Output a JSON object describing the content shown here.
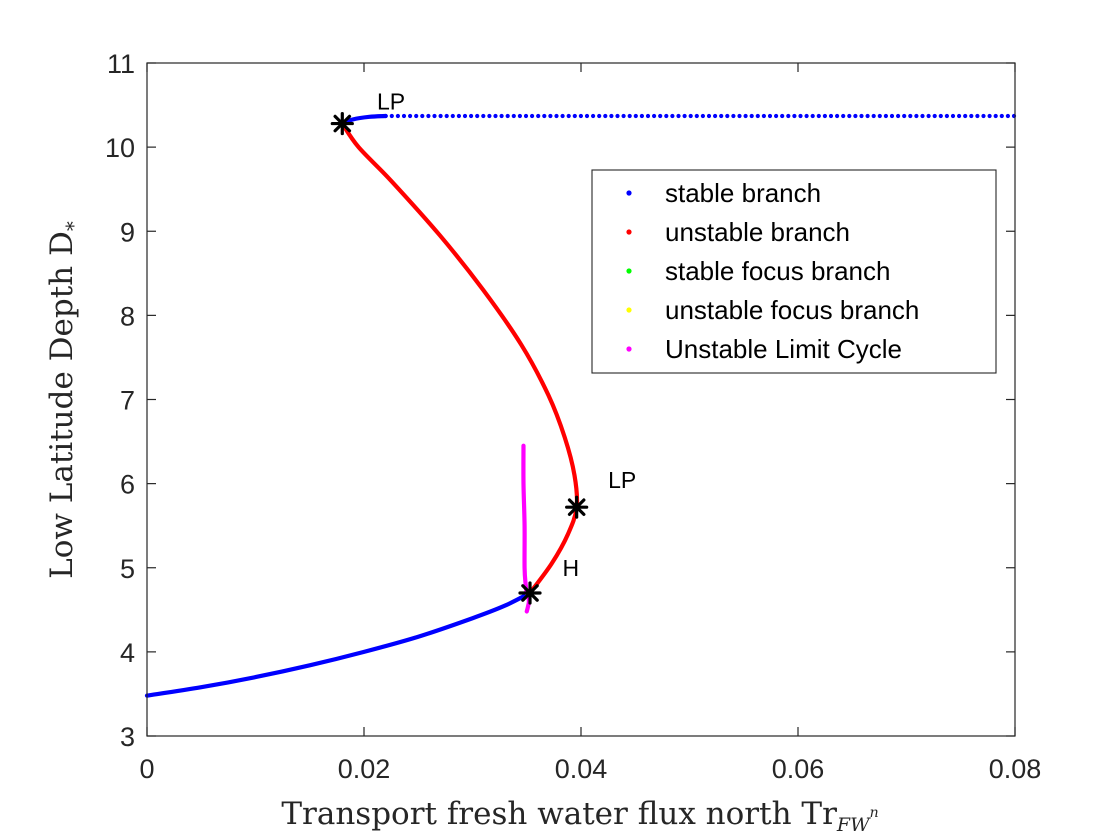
{
  "chart_data": {
    "type": "line",
    "xlabel": "Transport fresh water flux north Tr",
    "xlabel_subscript": "FW",
    "xlabel_superscript": "n",
    "ylabel": "Low Latitude Depth D",
    "ylabel_subscript": "*",
    "xlim": [
      0,
      0.08
    ],
    "ylim": [
      3,
      11
    ],
    "xticks": [
      0,
      0.02,
      0.04,
      0.06,
      0.08
    ],
    "xtick_labels": [
      "0",
      "0.02",
      "0.04",
      "0.06",
      "0.08"
    ],
    "yticks": [
      3,
      4,
      5,
      6,
      7,
      8,
      9,
      10,
      11
    ],
    "ytick_labels": [
      "3",
      "4",
      "5",
      "6",
      "7",
      "8",
      "9",
      "10",
      "11"
    ],
    "grid": false,
    "legend_position": "top-right",
    "legend": [
      {
        "label": "stable branch",
        "color": "#0000ff"
      },
      {
        "label": "unstable branch",
        "color": "#ff0000"
      },
      {
        "label": "stable focus branch",
        "color": "#00ff00"
      },
      {
        "label": "unstable focus branch",
        "color": "#ffff00"
      },
      {
        "label": "Unstable Limit Cycle",
        "color": "#ff00ff"
      }
    ],
    "series": [
      {
        "name": "stable branch",
        "color": "#0000ff",
        "style": "solid",
        "x": [
          0,
          0.005,
          0.01,
          0.015,
          0.02,
          0.025,
          0.03,
          0.033,
          0.0353
        ],
        "y": [
          3.48,
          3.58,
          3.7,
          3.84,
          4.0,
          4.18,
          4.4,
          4.55,
          4.7
        ]
      },
      {
        "name": "unstable branch",
        "color": "#ff0000",
        "style": "solid",
        "x": [
          0.0353,
          0.0373,
          0.0388,
          0.0396,
          0.0394,
          0.0385,
          0.037,
          0.0345,
          0.031,
          0.027,
          0.0225,
          0.0195,
          0.018
        ],
        "y": [
          4.7,
          5.05,
          5.4,
          5.72,
          6.1,
          6.55,
          7.05,
          7.65,
          8.3,
          8.95,
          9.6,
          10.0,
          10.28
        ]
      },
      {
        "name": "stable branch",
        "color": "#0000ff",
        "style": "solid",
        "x": [
          0.018,
          0.019,
          0.0205,
          0.022
        ],
        "y": [
          10.28,
          10.33,
          10.36,
          10.37
        ]
      },
      {
        "name": "stable branch",
        "color": "#0000ff",
        "style": "dotted",
        "x": [
          0.022,
          0.08
        ],
        "y": [
          10.37,
          10.37
        ]
      },
      {
        "name": "Unstable Limit Cycle",
        "color": "#ff00ff",
        "style": "solid",
        "x": [
          0.0347,
          0.0347,
          0.0348,
          0.0348,
          0.0349,
          0.035,
          0.0351,
          0.0352,
          0.0351,
          0.035
        ],
        "y": [
          6.45,
          6.0,
          5.5,
          5.0,
          4.8,
          4.7,
          4.68,
          4.6,
          4.53,
          4.48
        ]
      }
    ],
    "special_points": [
      {
        "label": "LP",
        "x": 0.018,
        "y": 10.28,
        "label_x": 0.0212,
        "label_y": 10.45
      },
      {
        "label": "LP",
        "x": 0.0396,
        "y": 5.72,
        "label_x": 0.0425,
        "label_y": 5.95
      },
      {
        "label": "H",
        "x": 0.0353,
        "y": 4.7,
        "label_x": 0.0383,
        "label_y": 4.9
      }
    ]
  }
}
